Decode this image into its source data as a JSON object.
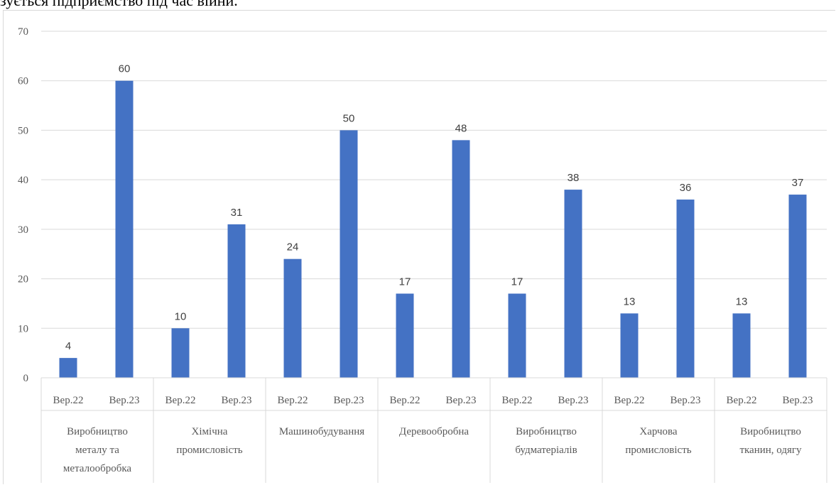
{
  "page_text": "зується підприємство під час війни.",
  "colors": {
    "bar": "#4472c4",
    "grid": "#d9d9d9",
    "text": "#595959"
  },
  "chart_data": {
    "type": "bar",
    "ylim": [
      0,
      70
    ],
    "yticks": [
      0,
      10,
      20,
      30,
      40,
      50,
      60,
      70
    ],
    "grid": true,
    "legend": "none",
    "groups": [
      {
        "lines": [
          "Виробництво",
          "металу та",
          "металообробка"
        ]
      },
      {
        "lines": [
          "Хімічна",
          "промисловість"
        ]
      },
      {
        "lines": [
          "Машинобудування"
        ]
      },
      {
        "lines": [
          "Деревообробна"
        ]
      },
      {
        "lines": [
          "Виробництво",
          "будматеріалів"
        ]
      },
      {
        "lines": [
          "Харчова",
          "промисловість"
        ]
      },
      {
        "lines": [
          "Виробництво",
          "тканин, одягу"
        ]
      }
    ],
    "periods": [
      "Вер.22",
      "Вер.23"
    ],
    "values": [
      [
        4,
        60
      ],
      [
        10,
        31
      ],
      [
        24,
        50
      ],
      [
        17,
        48
      ],
      [
        17,
        38
      ],
      [
        13,
        36
      ],
      [
        13,
        37
      ]
    ]
  }
}
